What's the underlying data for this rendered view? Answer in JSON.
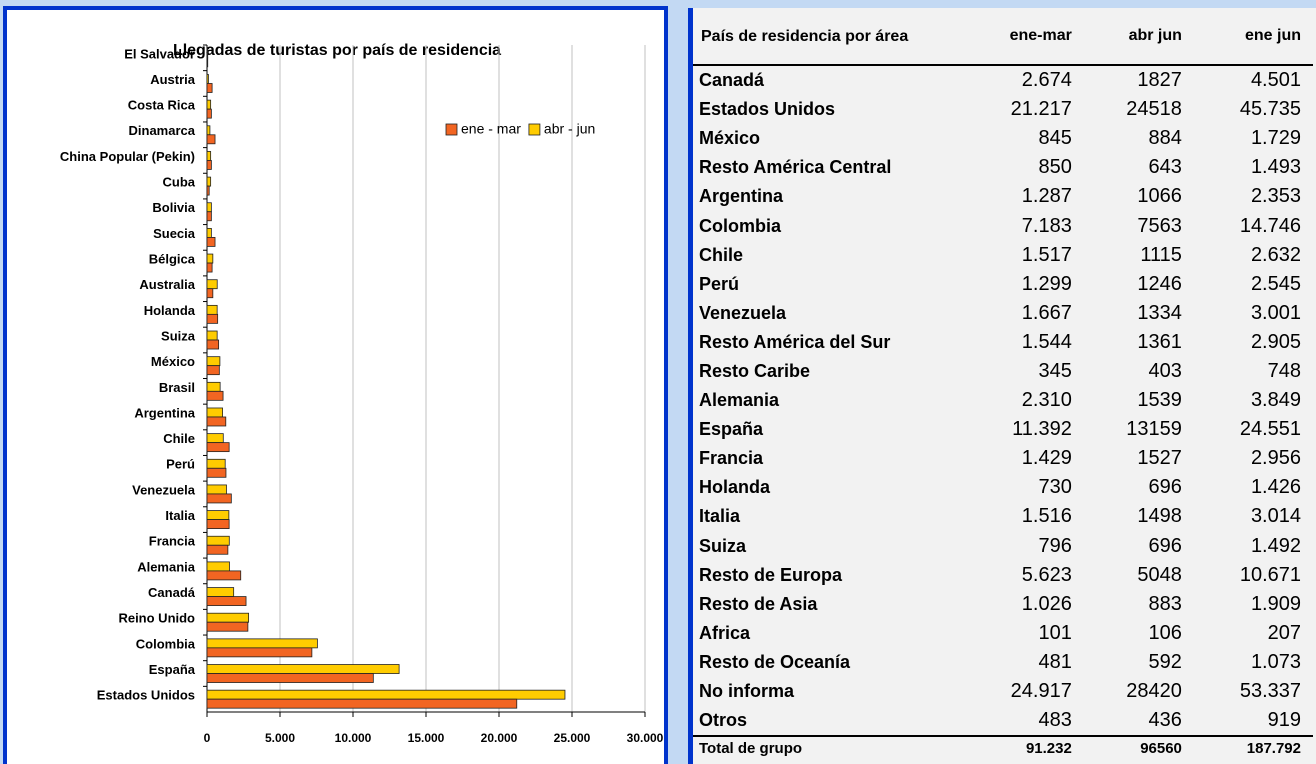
{
  "chart_data": {
    "type": "barh",
    "title": "Llegadas de turistas  por país de residencia",
    "categories": [
      "El Salvador",
      "Austria",
      "Costa Rica",
      "Dinamarca",
      "China Popular (Pekin)",
      "Cuba",
      "Bolivia",
      "Suecia",
      "Bélgica",
      "Australia",
      "Holanda",
      "Suiza",
      "México",
      "Brasil",
      "Argentina",
      "Chile",
      "Perú",
      "Venezuela",
      "Italia",
      "Francia",
      "Alemania",
      "Canadá",
      "Reino Unido",
      "Colombia",
      "España",
      "Estados Unidos"
    ],
    "series": [
      {
        "name": "ene - mar",
        "color": "#f26522",
        "values": [
          50,
          350,
          300,
          550,
          300,
          150,
          300,
          550,
          350,
          400,
          730,
          796,
          845,
          1100,
          1287,
          1517,
          1299,
          1667,
          1516,
          1429,
          2310,
          2674,
          2800,
          7183,
          11392,
          21217
        ]
      },
      {
        "name": "abr - jun",
        "color": "#ffcc00",
        "values": [
          50,
          100,
          250,
          200,
          250,
          250,
          300,
          300,
          400,
          700,
          696,
          696,
          884,
          900,
          1066,
          1115,
          1246,
          1334,
          1498,
          1527,
          1539,
          1827,
          2850,
          7563,
          13159,
          24518
        ]
      }
    ],
    "xlim": [
      0,
      30000
    ],
    "xticks": [
      0,
      {
        "value": 5000,
        "label": "5.000"
      },
      {
        "value": 10000,
        "label": "10.000"
      },
      {
        "value": 15000,
        "label": "15.000"
      },
      {
        "value": 20000,
        "label": "20.000"
      },
      {
        "value": 25000,
        "label": "25.000"
      },
      {
        "value": 30000,
        "label": "30.000"
      }
    ],
    "grid": true,
    "legend": "top-right"
  },
  "table": {
    "header": [
      "País de residencia por área",
      "ene-mar",
      "abr jun",
      "ene jun"
    ],
    "rows": [
      [
        "Canadá",
        "2.674",
        "1827",
        "4.501"
      ],
      [
        "Estados Unidos",
        "21.217",
        "24518",
        "45.735"
      ],
      [
        "México",
        "845",
        "884",
        "1.729"
      ],
      [
        "Resto América Central",
        "850",
        "643",
        "1.493"
      ],
      [
        "Argentina",
        "1.287",
        "1066",
        "2.353"
      ],
      [
        "Colombia",
        "7.183",
        "7563",
        "14.746"
      ],
      [
        "Chile",
        "1.517",
        "1115",
        "2.632"
      ],
      [
        "Perú",
        "1.299",
        "1246",
        "2.545"
      ],
      [
        "Venezuela",
        "1.667",
        "1334",
        "3.001"
      ],
      [
        "Resto América del Sur",
        "1.544",
        "1361",
        "2.905"
      ],
      [
        "Resto Caribe",
        "345",
        "403",
        "748"
      ],
      [
        "Alemania",
        "2.310",
        "1539",
        "3.849"
      ],
      [
        "España",
        "11.392",
        "13159",
        "24.551"
      ],
      [
        "Francia",
        "1.429",
        "1527",
        "2.956"
      ],
      [
        "Holanda",
        "730",
        "696",
        "1.426"
      ],
      [
        "Italia",
        "1.516",
        "1498",
        "3.014"
      ],
      [
        "Suiza",
        "796",
        "696",
        "1.492"
      ],
      [
        "Resto de Europa",
        "5.623",
        "5048",
        "10.671"
      ],
      [
        "Resto de Asia",
        "1.026",
        "883",
        "1.909"
      ],
      [
        "Africa",
        "101",
        "106",
        "207"
      ],
      [
        "Resto de Oceanía",
        "481",
        "592",
        "1.073"
      ],
      [
        "No informa",
        "24.917",
        "28420",
        "53.337"
      ],
      [
        "Otros",
        "483",
        "436",
        "919"
      ]
    ],
    "total": [
      "Total de grupo",
      "91.232",
      "96560",
      "187.792"
    ]
  }
}
